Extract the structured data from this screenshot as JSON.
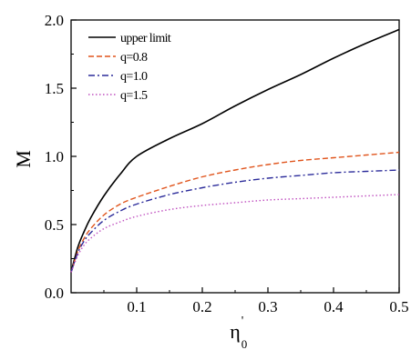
{
  "chart_data": {
    "type": "line",
    "xlabel": "η",
    "xlabel_superscript": "'",
    "xlabel_subscript": "0",
    "ylabel": "M",
    "xlim": [
      0.0,
      0.5
    ],
    "ylim": [
      0.0,
      2.0
    ],
    "x_ticks": [
      0.1,
      0.2,
      0.3,
      0.4,
      0.5
    ],
    "x_tick_labels": [
      "0.1",
      "0.2",
      "0.3",
      "0.4",
      "0.5"
    ],
    "y_ticks": [
      0.0,
      0.5,
      1.0,
      1.5,
      2.0
    ],
    "y_tick_labels": [
      "0.0",
      "0.5",
      "1.0",
      "1.5",
      "2.0"
    ],
    "grid": false,
    "legend_position": "top-left",
    "series": [
      {
        "name": "upper limit",
        "color": "#000000",
        "style": "solid",
        "x": [
          0.0,
          0.01,
          0.02,
          0.03,
          0.05,
          0.075,
          0.1,
          0.15,
          0.2,
          0.25,
          0.3,
          0.35,
          0.4,
          0.45,
          0.5
        ],
        "values": [
          0.15,
          0.33,
          0.45,
          0.55,
          0.71,
          0.87,
          1.0,
          1.13,
          1.24,
          1.37,
          1.49,
          1.6,
          1.72,
          1.83,
          1.93
        ]
      },
      {
        "name": "q=0.8",
        "color": "#e0541c",
        "style": "dashed",
        "x": [
          0.0,
          0.01,
          0.02,
          0.03,
          0.05,
          0.075,
          0.1,
          0.15,
          0.2,
          0.25,
          0.3,
          0.35,
          0.4,
          0.45,
          0.5
        ],
        "values": [
          0.15,
          0.3,
          0.4,
          0.47,
          0.57,
          0.65,
          0.7,
          0.78,
          0.85,
          0.9,
          0.94,
          0.97,
          0.99,
          1.01,
          1.03
        ]
      },
      {
        "name": "q=1.0",
        "color": "#2b2b9a",
        "style": "dashdot",
        "x": [
          0.0,
          0.01,
          0.02,
          0.03,
          0.05,
          0.075,
          0.1,
          0.15,
          0.2,
          0.25,
          0.3,
          0.35,
          0.4,
          0.45,
          0.5
        ],
        "values": [
          0.15,
          0.29,
          0.38,
          0.44,
          0.53,
          0.6,
          0.65,
          0.72,
          0.77,
          0.81,
          0.84,
          0.86,
          0.88,
          0.89,
          0.9
        ]
      },
      {
        "name": "q=1.5",
        "color": "#c050c0",
        "style": "dotted",
        "x": [
          0.0,
          0.01,
          0.02,
          0.03,
          0.05,
          0.075,
          0.1,
          0.15,
          0.2,
          0.25,
          0.3,
          0.35,
          0.4,
          0.45,
          0.5
        ],
        "values": [
          0.15,
          0.27,
          0.35,
          0.4,
          0.47,
          0.52,
          0.56,
          0.61,
          0.64,
          0.66,
          0.68,
          0.69,
          0.7,
          0.71,
          0.72
        ]
      }
    ]
  }
}
